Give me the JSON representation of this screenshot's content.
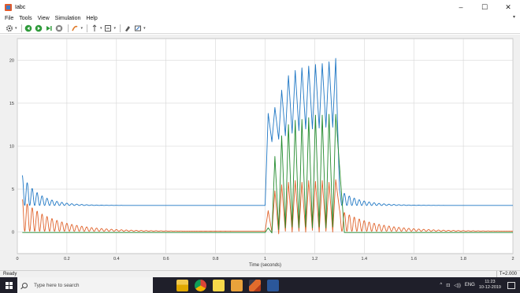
{
  "window": {
    "title": "Iabc",
    "controls": {
      "minimize": "–",
      "maximize": "☐",
      "close": "✕"
    }
  },
  "menu": {
    "items": [
      "File",
      "Tools",
      "View",
      "Simulation",
      "Help"
    ]
  },
  "toolbar": {
    "icons": [
      "settings-icon",
      "step-back-icon",
      "run-icon",
      "step-forward-icon",
      "stop-icon",
      "highlight-icon",
      "cursor-icon",
      "zoom-fit-icon",
      "style-icon",
      "edit-icon"
    ]
  },
  "status": {
    "left": "Ready",
    "right": "T=2.000"
  },
  "taskbar": {
    "search_placeholder": "Type here to search",
    "apps": [
      "file-explorer-icon",
      "chrome-icon",
      "sticky-notes-icon",
      "folder-icon",
      "matlab-icon",
      "word-icon"
    ],
    "tray": {
      "chevron": "^",
      "network": "⊡",
      "volume": "◁))",
      "lang": "ENG",
      "time": "11:23",
      "date": "10-12-2019"
    }
  },
  "chart_data": {
    "type": "line",
    "xlabel": "Time (seconds)",
    "ylabel": "",
    "title": "",
    "xlim": [
      0,
      2
    ],
    "ylim": [
      -2.5,
      22.5
    ],
    "xticks": [
      0,
      0.2,
      0.4,
      0.6,
      0.8,
      1,
      1.2,
      1.4,
      1.6,
      1.8,
      2
    ],
    "xtick_labels": [
      "0",
      "0.2",
      "0.4",
      "0.6",
      "0.8",
      "1",
      "1.2",
      "1.4",
      "1.6",
      "1.8",
      "2"
    ],
    "yticks": [
      0,
      5,
      10,
      15,
      20
    ],
    "ytick_labels": [
      "0",
      "5",
      "10",
      "15",
      "20"
    ],
    "grid": true,
    "colors": {
      "blue": "#1f77c4",
      "orange": "#e0622a",
      "green": "#238b2e"
    },
    "series": [
      {
        "color": "blue",
        "segments": [
          {
            "kind": "decay",
            "t0": 0.02,
            "t1": 1.0,
            "base": 3.1,
            "amp": 3.5,
            "tau": 0.07,
            "freq": 50,
            "start": 1.0
          },
          {
            "kind": "fault",
            "t0": 1.0,
            "t1": 1.3,
            "peaks": [
              13.8,
              14.5,
              16.5,
              18.2,
              18.8,
              19.1,
              19.3,
              19.5,
              19.6,
              19.8,
              20.2
            ],
            "troughs": [
              10.5,
              10.8,
              11.2,
              11.5,
              11.8,
              12,
              12,
              12.1,
              12.2,
              12.2
            ]
          },
          {
            "kind": "decay",
            "t0": 1.3,
            "t1": 2.0,
            "base": 3.1,
            "amp": 2.0,
            "tau": 0.08,
            "freq": 50,
            "start": 0.9
          }
        ]
      },
      {
        "color": "orange",
        "segments": [
          {
            "kind": "decay",
            "t0": 0.02,
            "t1": 1.0,
            "base": 0.1,
            "amp": 3.7,
            "tau": 0.13,
            "freq": 50,
            "start": 1.0
          },
          {
            "kind": "fault",
            "t0": 1.0,
            "t1": 1.3,
            "peaks": [
              2.5,
              4.8,
              5.5,
              5.8,
              6.0,
              5.8,
              6.0,
              5.9,
              6.0,
              5.8,
              6.1
            ],
            "troughs": [
              0.0,
              -0.2,
              0.1,
              0.0,
              0.1,
              0.0,
              0.2,
              0.0,
              0.1,
              0.0
            ]
          },
          {
            "kind": "decay",
            "t0": 1.3,
            "t1": 2.0,
            "base": 0.1,
            "amp": 2.8,
            "tau": 0.14,
            "freq": 50,
            "start": 0.9
          }
        ]
      },
      {
        "color": "green",
        "segments": [
          {
            "kind": "flat",
            "t0": 0.02,
            "t1": 1.0,
            "value": -0.05
          },
          {
            "kind": "fault",
            "t0": 1.0,
            "t1": 1.3,
            "peaks": [
              0.5,
              8.8,
              11.2,
              12.5,
              13.0,
              13.1,
              13.3,
              13.6,
              13.6,
              13.7,
              13.7
            ],
            "troughs": [
              -0.1,
              0.3,
              0.5,
              0.6,
              0.5,
              0.6,
              0.5,
              0.6,
              0.5,
              0.6
            ]
          },
          {
            "kind": "flat",
            "t0": 1.32,
            "t1": 2.0,
            "value": -0.05
          }
        ]
      }
    ]
  }
}
